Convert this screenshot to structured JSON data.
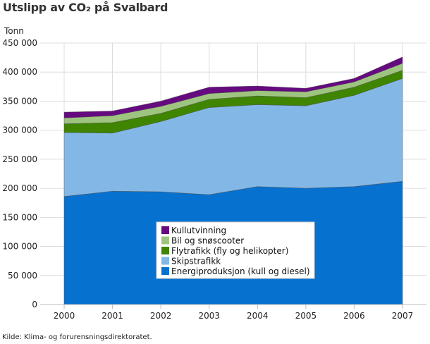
{
  "chart_data": {
    "type": "area",
    "stacked": true,
    "title": "Utslipp av CO₂ på Svalbard",
    "ylabel": "Tonn",
    "xlabel": "",
    "x": [
      "2000",
      "2001",
      "2002",
      "2003",
      "2004",
      "2005",
      "2006",
      "2007"
    ],
    "ylim": [
      0,
      450000
    ],
    "yticks": [
      0,
      50000,
      100000,
      150000,
      200000,
      250000,
      300000,
      350000,
      400000,
      450000
    ],
    "ytick_labels": [
      "0",
      "50 000",
      "100 000",
      "150 000",
      "200 000",
      "250 000",
      "300 000",
      "350 000",
      "400 000",
      "450 000"
    ],
    "grid": true,
    "legend_placement": "center-bottom",
    "series": [
      {
        "name": "Energiproduksjon (kull og diesel)",
        "color": "#0771cf",
        "values": [
          186000,
          195000,
          194000,
          189000,
          203000,
          200000,
          203000,
          212000
        ]
      },
      {
        "name": "Skipstrafikk",
        "color": "#83b8e6",
        "values": [
          110000,
          100000,
          121000,
          150000,
          141000,
          142000,
          157000,
          177000
        ]
      },
      {
        "name": "Flytrafikk (fly og helikopter)",
        "color": "#3f8500",
        "values": [
          15000,
          18000,
          14000,
          14000,
          15000,
          14000,
          14000,
          14000
        ]
      },
      {
        "name": "Bil og snøscooter",
        "color": "#9ec580",
        "values": [
          10000,
          12000,
          12000,
          10000,
          9000,
          10000,
          9000,
          12000
        ]
      },
      {
        "name": "Kullutvinning",
        "color": "#660a80",
        "values": [
          10000,
          8000,
          9000,
          11000,
          8000,
          6000,
          6000,
          11000
        ]
      }
    ]
  },
  "source": "Kilde: Klima- og forurensningsdirektoratet."
}
